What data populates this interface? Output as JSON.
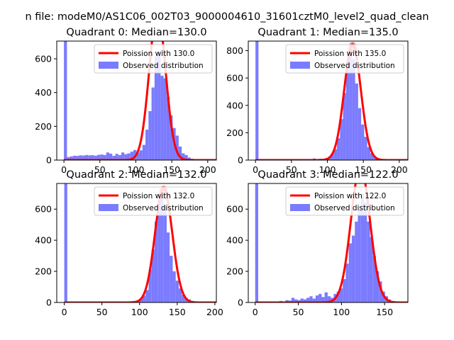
{
  "suptitle": "n file: modeM0/AS1C06_002T03_9000004610_31601cztM0_level2_quad_clean",
  "legend_labels": {
    "fit": "Poission with",
    "observed": "Observed distribution"
  },
  "colors": {
    "fit": "#ff0000",
    "hist": "#7b7bff",
    "axis": "#000000",
    "figure_bg": "#ffffff"
  },
  "chart_data": [
    {
      "type": "bar",
      "title": "Quadrant 0: Median=130.0",
      "median": 130.0,
      "legend_label": "Poission with 130.0",
      "legend_position": "top-right",
      "xlim": [
        -10,
        212
      ],
      "ylim": [
        0,
        705
      ],
      "xticks": [
        0,
        50,
        100,
        150,
        200
      ],
      "yticks": [
        0,
        200,
        400,
        600
      ],
      "bin_width": 4.2,
      "spike": {
        "x": 0,
        "count": 705
      },
      "hist": [
        [
          0,
          10
        ],
        [
          4.2,
          18
        ],
        [
          8.4,
          22
        ],
        [
          12.6,
          26
        ],
        [
          16.8,
          25
        ],
        [
          21,
          28
        ],
        [
          25.2,
          27
        ],
        [
          29.4,
          30
        ],
        [
          33.6,
          28
        ],
        [
          37.8,
          29
        ],
        [
          42,
          26
        ],
        [
          46.2,
          31
        ],
        [
          50.4,
          33
        ],
        [
          54.6,
          30
        ],
        [
          58.8,
          45
        ],
        [
          63,
          38
        ],
        [
          67.2,
          25
        ],
        [
          71.4,
          37
        ],
        [
          75.6,
          30
        ],
        [
          79.8,
          45
        ],
        [
          84,
          35
        ],
        [
          88.2,
          40
        ],
        [
          92.4,
          50
        ],
        [
          96.6,
          60
        ],
        [
          100.8,
          45
        ],
        [
          105,
          58
        ],
        [
          109.2,
          90
        ],
        [
          113.4,
          180
        ],
        [
          117.6,
          290
        ],
        [
          121.8,
          430
        ],
        [
          126,
          615
        ],
        [
          130.2,
          640
        ],
        [
          134.4,
          500
        ],
        [
          138.6,
          485
        ],
        [
          142.8,
          375
        ],
        [
          147,
          265
        ],
        [
          151.2,
          190
        ],
        [
          155.4,
          145
        ],
        [
          159.6,
          80
        ],
        [
          163.8,
          40
        ],
        [
          168,
          30
        ],
        [
          172.2,
          15
        ],
        [
          176.4,
          8
        ],
        [
          180.6,
          5
        ]
      ]
    },
    {
      "type": "bar",
      "title": "Quadrant 1: Median=135.0",
      "median": 135.0,
      "legend_label": "Poission with 135.0",
      "legend_position": "top-right",
      "xlim": [
        -10,
        212
      ],
      "ylim": [
        0,
        870
      ],
      "xticks": [
        0,
        50,
        100,
        150,
        200
      ],
      "yticks": [
        0,
        200,
        400,
        600,
        800
      ],
      "bin_width": 4.2,
      "spike": {
        "x": 0,
        "count": 870
      },
      "hist": [
        [
          71.4,
          5
        ],
        [
          79.8,
          12
        ],
        [
          88.2,
          10
        ],
        [
          96.6,
          15
        ],
        [
          100.8,
          25
        ],
        [
          105,
          50
        ],
        [
          109.2,
          80
        ],
        [
          113.4,
          160
        ],
        [
          117.6,
          300
        ],
        [
          121.8,
          490
        ],
        [
          126,
          720
        ],
        [
          130.2,
          810
        ],
        [
          134.4,
          740
        ],
        [
          138.6,
          560
        ],
        [
          142.8,
          380
        ],
        [
          147,
          260
        ],
        [
          151.2,
          170
        ],
        [
          155.4,
          95
        ],
        [
          159.6,
          50
        ],
        [
          163.8,
          25
        ],
        [
          168,
          15
        ],
        [
          172.2,
          10
        ],
        [
          176.4,
          5
        ]
      ]
    },
    {
      "type": "bar",
      "title": "Quadrant 2: Median=132.0",
      "median": 132.0,
      "legend_label": "Poission with 132.0",
      "legend_position": "top-right",
      "xlim": [
        -10,
        202
      ],
      "ylim": [
        0,
        765
      ],
      "xticks": [
        0,
        50,
        100,
        150,
        200
      ],
      "yticks": [
        0,
        200,
        400,
        600
      ],
      "bin_width": 4.0,
      "spike": {
        "x": 0,
        "count": 765
      },
      "hist": [
        [
          80,
          5
        ],
        [
          88,
          8
        ],
        [
          92,
          10
        ],
        [
          96,
          15
        ],
        [
          100,
          25
        ],
        [
          104,
          45
        ],
        [
          108,
          80
        ],
        [
          112,
          210
        ],
        [
          116,
          340
        ],
        [
          120,
          520
        ],
        [
          124,
          660
        ],
        [
          128,
          690
        ],
        [
          132,
          620
        ],
        [
          136,
          450
        ],
        [
          140,
          300
        ],
        [
          144,
          200
        ],
        [
          148,
          140
        ],
        [
          152,
          90
        ],
        [
          156,
          50
        ],
        [
          160,
          30
        ],
        [
          164,
          20
        ],
        [
          168,
          10
        ],
        [
          172,
          5
        ],
        [
          176,
          3
        ]
      ]
    },
    {
      "type": "bar",
      "title": "Quadrant 3: Median=122.0",
      "median": 122.0,
      "legend_label": "Poission with 122.0",
      "legend_position": "top-right",
      "xlim": [
        -8,
        177
      ],
      "ylim": [
        0,
        765
      ],
      "xticks": [
        0,
        50,
        100,
        150
      ],
      "yticks": [
        0,
        200,
        400,
        600
      ],
      "bin_width": 3.5,
      "spike": {
        "x": 0,
        "count": 765
      },
      "hist": [
        [
          21,
          5
        ],
        [
          28,
          10
        ],
        [
          35,
          15
        ],
        [
          38.5,
          12
        ],
        [
          42,
          30
        ],
        [
          45.5,
          20
        ],
        [
          49,
          15
        ],
        [
          52.5,
          25
        ],
        [
          56,
          20
        ],
        [
          59.5,
          30
        ],
        [
          63,
          40
        ],
        [
          66.5,
          25
        ],
        [
          70,
          45
        ],
        [
          73.5,
          55
        ],
        [
          77,
          35
        ],
        [
          80.5,
          65
        ],
        [
          84,
          40
        ],
        [
          87.5,
          30
        ],
        [
          91,
          55
        ],
        [
          94.5,
          70
        ],
        [
          98,
          90
        ],
        [
          101.5,
          150
        ],
        [
          105,
          250
        ],
        [
          108.5,
          380
        ],
        [
          112,
          430
        ],
        [
          115.5,
          520
        ],
        [
          119,
          600
        ],
        [
          122.5,
          700
        ],
        [
          126,
          640
        ],
        [
          129.5,
          520
        ],
        [
          133,
          420
        ],
        [
          136.5,
          300
        ],
        [
          140,
          200
        ],
        [
          143.5,
          135
        ],
        [
          147,
          70
        ],
        [
          150.5,
          40
        ],
        [
          154,
          20
        ],
        [
          157.5,
          10
        ],
        [
          161,
          5
        ]
      ]
    }
  ]
}
